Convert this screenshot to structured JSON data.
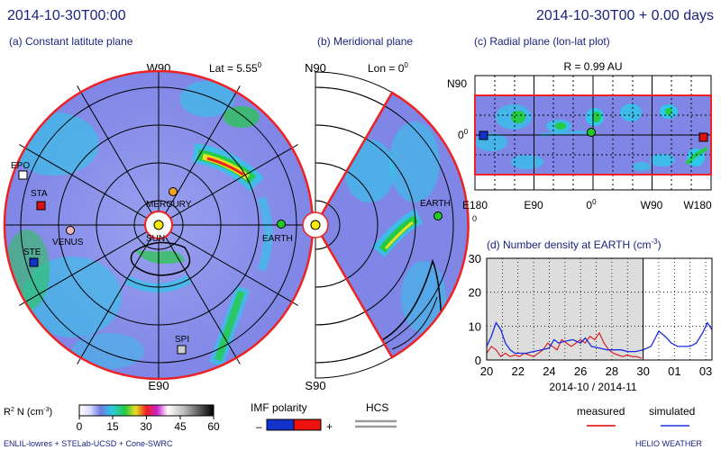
{
  "header": {
    "datetime": "2014-10-30T00:00",
    "elapsed": "2014-10-30T00 + 0.00 days"
  },
  "panel_a": {
    "title": "(a) Constant latitute plane",
    "top_label": "W90",
    "lat_label": "Lat = 5.55",
    "lat_sup": "0",
    "bottom_label": "E90",
    "bodies": [
      {
        "name": "EPO",
        "color": "#ffffff"
      },
      {
        "name": "STA",
        "color": "#dd1111"
      },
      {
        "name": "MERCURY",
        "color": "#f0a020"
      },
      {
        "name": "VENUS",
        "color": "#f4b8b8"
      },
      {
        "name": "SUN",
        "color": "#ffee00"
      },
      {
        "name": "EARTH",
        "color": "#22cc22"
      },
      {
        "name": "STE",
        "color": "#1133cc"
      },
      {
        "name": "SPI",
        "color": "#cccccc"
      }
    ]
  },
  "panel_b": {
    "title": "(b) Meridional plane",
    "top_label": "N90",
    "lon_label": "Lon = 0",
    "lon_sup": "0",
    "bottom_label": "S90",
    "earth_label": "EARTH"
  },
  "panel_c": {
    "title": "(c) Radial plane (lon-lat plot)",
    "radius_label": "R = 0.99 AU",
    "y_top": "N90",
    "y_mid": "0",
    "y_mid_sup": "0",
    "x_ticks": [
      "E180",
      "E90",
      "0",
      "W90",
      "W180"
    ],
    "x_tick_sup": "0",
    "x_sub_label": "0"
  },
  "panel_d": {
    "title": "(d) Number density at EARTH (cm",
    "title_sup": "-3",
    "title_end": ")",
    "xlabel": "2014-10 / 2014-11",
    "legend_measured": "measured",
    "legend_simulated": "simulated"
  },
  "colorbar": {
    "label": "R",
    "label_sup": "2",
    "label_rest": " N (cm",
    "label_unit_sup": "-3",
    "label_end": ")",
    "ticks": [
      "0",
      "15",
      "30",
      "45",
      "60"
    ]
  },
  "imf": {
    "title": "IMF polarity",
    "minus": "–",
    "plus": "+"
  },
  "hcs": {
    "title": "HCS"
  },
  "footer": {
    "credits": "ENLIL-lowres + STELab-UCSD + Cone-SWRC",
    "brand": "HELIO  WEATHER"
  },
  "colors": {
    "title_text": "#1a237e",
    "frame_red": "#ee2222",
    "measured_line": "#dd0000",
    "simulated_line": "#1a2edd",
    "background_blue": "#7f86e6"
  },
  "chart_data": {
    "type": "line",
    "title": "(d) Number density at EARTH (cm-3)",
    "xlabel": "2014-10 / 2014-11",
    "ylabel": "",
    "x_tick_labels": [
      "20",
      "22",
      "24",
      "26",
      "28",
      "30",
      "01",
      "03"
    ],
    "x": [
      20,
      21,
      22,
      23,
      24,
      25,
      26,
      27,
      28,
      29,
      30,
      31,
      32,
      33,
      34
    ],
    "xlim": [
      20,
      34.4
    ],
    "ylim": [
      0,
      30
    ],
    "y_ticks": [
      0,
      10,
      20,
      30
    ],
    "grid": true,
    "shaded_region": [
      20,
      30
    ],
    "series": [
      {
        "name": "measured",
        "color": "#dd0000",
        "x": [
          20,
          20.3,
          20.6,
          20.9,
          21.2,
          21.5,
          21.8,
          22.1,
          22.4,
          22.7,
          23.0,
          23.3,
          23.6,
          23.9,
          24.2,
          24.5,
          24.8,
          25.1,
          25.4,
          25.7,
          26.0,
          26.3,
          26.6,
          26.9,
          27.2,
          27.5,
          27.8,
          28.1,
          28.4,
          28.7,
          29.0,
          29.3,
          29.6,
          29.9
        ],
        "y": [
          2,
          4,
          3,
          1,
          2,
          1,
          1.5,
          1,
          2,
          1.5,
          1,
          2,
          3,
          5,
          4,
          3,
          6,
          5,
          4,
          5,
          6,
          5,
          7,
          6,
          8,
          5,
          3,
          2,
          1.5,
          1,
          1.5,
          1,
          1,
          0.5
        ]
      },
      {
        "name": "simulated",
        "color": "#1a2edd",
        "x": [
          20,
          20.3,
          20.6,
          20.9,
          21.2,
          21.5,
          21.8,
          22.1,
          22.5,
          23.0,
          23.5,
          24.0,
          24.3,
          24.6,
          25.0,
          25.5,
          26.0,
          26.3,
          26.7,
          27.2,
          27.7,
          28.2,
          28.6,
          29.0,
          29.5,
          30.0,
          30.5,
          31.0,
          31.4,
          31.8,
          32.2,
          32.6,
          33.0,
          33.4,
          33.8,
          34.1,
          34.4
        ],
        "y": [
          4,
          7,
          11,
          9,
          5,
          3,
          2,
          2,
          2,
          2.5,
          3,
          3.5,
          6,
          5,
          5.5,
          6,
          5,
          6.5,
          4,
          3.5,
          3,
          3,
          3,
          2.5,
          2.5,
          3,
          4,
          8.5,
          7,
          5,
          4,
          4,
          4,
          5,
          8,
          11,
          9
        ]
      }
    ]
  }
}
